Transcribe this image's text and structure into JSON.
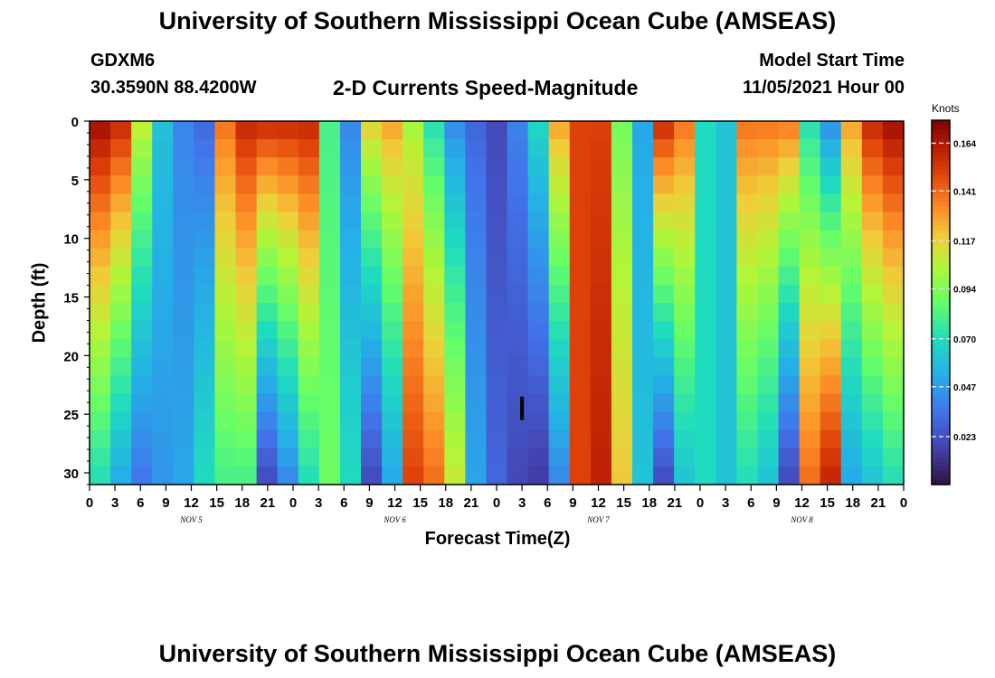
{
  "header": {
    "title": "University of Southern Mississippi Ocean Cube (AMSEAS)",
    "station_id": "GDXM6",
    "station_location": "30.3590N  88.4200W",
    "plot_title": "2-D Currents Speed-Magnitude",
    "model_start_label": "Model Start Time",
    "model_start_value": "11/05/2021 Hour 00"
  },
  "footer": {
    "repeated_title": "University of Southern Mississippi Ocean Cube (AMSEAS)"
  },
  "chart_data": {
    "type": "heatmap",
    "title": "2-D Currents Speed-Magnitude",
    "xlabel": "Forecast Time(Z)",
    "ylabel": "Depth (ft)",
    "x_hours_range": [
      0,
      96
    ],
    "ylim": [
      0,
      31
    ],
    "x_tick_labels": [
      "0",
      "3",
      "6",
      "9",
      "12",
      "15",
      "18",
      "21",
      "0",
      "3",
      "6",
      "9",
      "12",
      "15",
      "18",
      "21",
      "0",
      "3",
      "6",
      "9",
      "12",
      "15",
      "18",
      "21",
      "0",
      "3",
      "6",
      "9",
      "12",
      "15",
      "18",
      "21",
      "0"
    ],
    "x_tick_hours": [
      0,
      3,
      6,
      9,
      12,
      15,
      18,
      21,
      24,
      27,
      30,
      33,
      36,
      39,
      42,
      45,
      48,
      51,
      54,
      57,
      60,
      63,
      66,
      69,
      72,
      75,
      78,
      81,
      84,
      87,
      90,
      93,
      96
    ],
    "y_ticks": [
      0,
      5,
      10,
      15,
      20,
      25,
      30
    ],
    "date_labels": [
      {
        "text": "NOV 5",
        "hour": 12
      },
      {
        "text": "NOV 6",
        "hour": 36
      },
      {
        "text": "NOV 7",
        "hour": 60
      },
      {
        "text": "NOV 8",
        "hour": 84
      }
    ],
    "colorbar": {
      "units": "Knots",
      "min": 0.0,
      "max": 0.175,
      "ticks": [
        0.164,
        0.141,
        0.117,
        0.094,
        0.07,
        0.047,
        0.023
      ]
    },
    "surface_speed_knots": [
      0.17,
      0.16,
      0.11,
      0.06,
      0.04,
      0.03,
      0.14,
      0.16,
      0.16,
      0.16,
      0.16,
      0.08,
      0.04,
      0.12,
      0.13,
      0.1,
      0.07,
      0.04,
      0.03,
      0.02,
      0.04,
      0.07,
      0.13,
      0.15,
      0.15,
      0.09,
      0.05,
      0.16,
      0.14,
      0.07,
      0.06,
      0.14,
      0.14,
      0.14,
      0.07,
      0.04,
      0.13,
      0.16,
      0.17
    ],
    "bottom_speed_knots": [
      0.07,
      0.05,
      0.035,
      0.045,
      0.05,
      0.07,
      0.08,
      0.08,
      0.02,
      0.04,
      0.07,
      0.09,
      0.07,
      0.02,
      0.05,
      0.15,
      0.14,
      0.11,
      0.05,
      0.03,
      0.02,
      0.015,
      0.04,
      0.15,
      0.16,
      0.12,
      0.06,
      0.02,
      0.06,
      0.07,
      0.06,
      0.07,
      0.06,
      0.02,
      0.14,
      0.16,
      0.05,
      0.06,
      0.07
    ]
  }
}
